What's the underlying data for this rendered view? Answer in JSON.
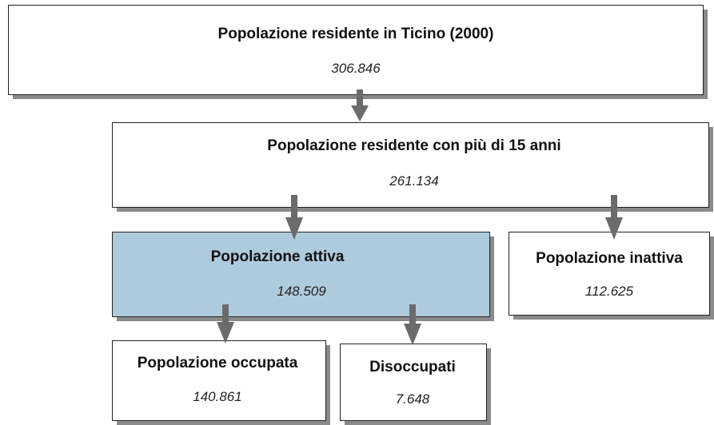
{
  "nodes": [
    {
      "label": "Popolazione residente in Ticino (2000)",
      "value": "306.846"
    },
    {
      "label": "Popolazione residente con più di 15 anni",
      "value": "261.134"
    },
    {
      "label": "Popolazione attiva",
      "value": "148.509"
    },
    {
      "label": "Popolazione inattiva",
      "value": "112.625"
    },
    {
      "label": "Popolazione occupata",
      "value": "140.861"
    },
    {
      "label": "Disoccupati",
      "value": "7.648"
    }
  ]
}
